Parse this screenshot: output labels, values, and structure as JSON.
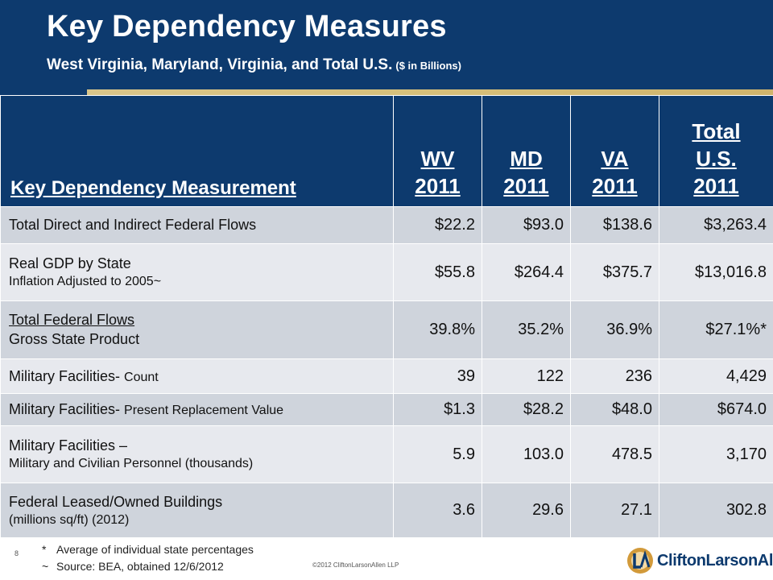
{
  "header": {
    "title": "Key Dependency Measures",
    "subtitle": "West Virginia, Maryland, Virginia, and Total U.S.",
    "unit_note": "($ in Billions)"
  },
  "table": {
    "columns": {
      "measurement": "Key Dependency Measurement",
      "wv": [
        "WV",
        "2011"
      ],
      "md": [
        "MD",
        "2011"
      ],
      "va": [
        "VA",
        "2011"
      ],
      "us": [
        "Total",
        "U.S.",
        "2011"
      ]
    },
    "rows": [
      {
        "label": "Total Direct and Indirect Federal Flows",
        "sub": "",
        "values": [
          "$22.2",
          "$93.0",
          "$138.6",
          "$3,263.4"
        ]
      },
      {
        "label": "Real GDP by State",
        "sub": "Inflation Adjusted to 2005~",
        "values": [
          "$55.8",
          "$264.4",
          "$375.7",
          "$13,016.8"
        ]
      },
      {
        "label": "Total Federal Flows",
        "sub": "Gross State Product",
        "values": [
          "39.8%",
          "35.2%",
          "36.9%",
          "$27.1%*"
        ]
      },
      {
        "label": "Military Facilities- ",
        "label_small": "Count",
        "values": [
          "39",
          "122",
          "236",
          "4,429"
        ]
      },
      {
        "label": "Military Facilities- ",
        "label_small": "Present Replacement Value",
        "values": [
          "$1.3",
          "$28.2",
          "$48.0",
          "$674.0"
        ]
      },
      {
        "label": "Military Facilities –",
        "sub": "Military and Civilian Personnel (thousands)",
        "values": [
          "5.9",
          "103.0",
          "478.5",
          "3,170"
        ]
      },
      {
        "label": "Federal Leased/Owned Buildings",
        "sub": "(millions sq/ft) (2012)",
        "values": [
          "3.6",
          "29.6",
          "27.1",
          "302.8"
        ]
      }
    ]
  },
  "footer": {
    "note1_mark": "*",
    "note1": "Average of  individual state percentages",
    "note2_mark": "~",
    "note2": "Source: BEA, obtained 12/6/2012",
    "page_number": "8",
    "copyright": "©2012 CliftonLarsonAllen LLP",
    "logo_text": "CliftonLarsonAllen"
  },
  "colors": {
    "navy": "#0d3a6e",
    "gold": "#d6bf7a",
    "row_dark": "#cfd4dc",
    "row_light": "#e7e9ee"
  }
}
